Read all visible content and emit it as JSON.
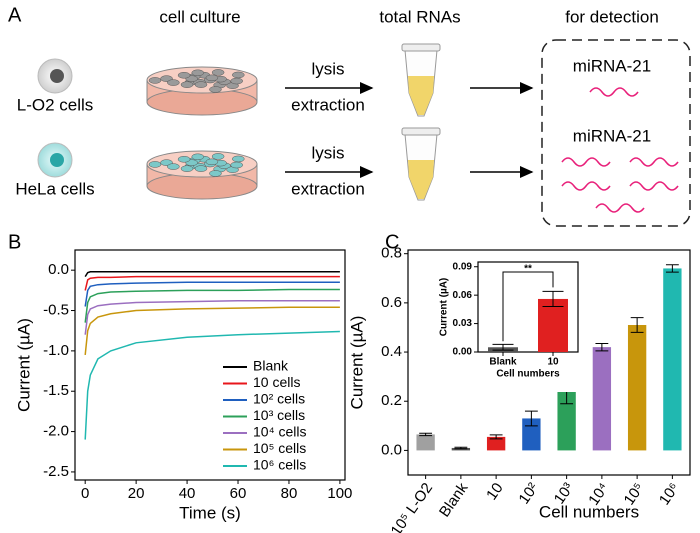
{
  "panel_labels": [
    "A",
    "B",
    "C"
  ],
  "diagram": {
    "steps": [
      "cell culture",
      "total RNAs",
      "for detection"
    ],
    "rows": [
      {
        "cells": "L-O2 cells",
        "arrow_top": "lysis",
        "arrow_bottom": "extraction",
        "target": "miRNA-21"
      },
      {
        "cells": "HeLa cells",
        "arrow_top": "lysis",
        "arrow_bottom": "extraction",
        "target": "miRNA-21"
      }
    ]
  },
  "chart_data": [
    {
      "type": "line",
      "xlabel": "Time (s)",
      "ylabel": "Current (µA)",
      "x": [
        0,
        1,
        2,
        5,
        10,
        20,
        40,
        60,
        80,
        100
      ],
      "series": [
        {
          "name": "Blank",
          "color": "#000000",
          "values": [
            -0.08,
            -0.03,
            -0.02,
            -0.02,
            -0.02,
            -0.02,
            -0.02,
            -0.02,
            -0.02,
            -0.02
          ]
        },
        {
          "name": "10 cells",
          "color": "#e8161b",
          "values": [
            -0.25,
            -0.12,
            -0.1,
            -0.09,
            -0.09,
            -0.08,
            -0.08,
            -0.08,
            -0.08,
            -0.08
          ]
        },
        {
          "name": "10² cells",
          "color": "#1f5fbf",
          "values": [
            -0.45,
            -0.25,
            -0.2,
            -0.18,
            -0.17,
            -0.16,
            -0.15,
            -0.15,
            -0.15,
            -0.15
          ]
        },
        {
          "name": "10³ cells",
          "color": "#2ca05a",
          "values": [
            -0.65,
            -0.4,
            -0.33,
            -0.29,
            -0.27,
            -0.26,
            -0.25,
            -0.25,
            -0.24,
            -0.24
          ]
        },
        {
          "name": "10⁴ cells",
          "color": "#9b6fc0",
          "values": [
            -0.8,
            -0.55,
            -0.48,
            -0.44,
            -0.42,
            -0.4,
            -0.39,
            -0.38,
            -0.38,
            -0.38
          ]
        },
        {
          "name": "10⁵ cells",
          "color": "#c8960c",
          "values": [
            -1.05,
            -0.75,
            -0.66,
            -0.58,
            -0.54,
            -0.5,
            -0.48,
            -0.47,
            -0.46,
            -0.46
          ]
        },
        {
          "name": "10⁶ cells",
          "color": "#20b8b0",
          "values": [
            -2.1,
            -1.5,
            -1.3,
            -1.1,
            -1.0,
            -0.9,
            -0.83,
            -0.8,
            -0.78,
            -0.76
          ]
        }
      ],
      "xlim": [
        -4,
        102
      ],
      "ylim": [
        -2.6,
        0.25
      ],
      "xticks": [
        0,
        20,
        40,
        60,
        80,
        100
      ],
      "yticks": [
        -2.5,
        {
          "value": -2,
          "label": "-2.0"
        },
        -1.5,
        {
          "value": -1,
          "label": "-1.0"
        },
        -0.5,
        {
          "value": 0,
          "label": "0.0"
        }
      ],
      "legend": "lower right"
    },
    {
      "type": "bar",
      "xlabel": "Cell numbers",
      "ylabel": "Current (µA)",
      "categories": [
        "10⁵ L-O2",
        "Blank",
        "10",
        "10²",
        "10³",
        "10⁴",
        "10⁵",
        "10⁶"
      ],
      "values": [
        0.065,
        0.01,
        0.055,
        0.13,
        0.24,
        0.42,
        0.51,
        0.74
      ],
      "errors": [
        0.005,
        0.003,
        0.008,
        0.03,
        0.05,
        0.015,
        0.03,
        0.015
      ],
      "colors": [
        "#a0a0a0",
        "#555555",
        "#e02020",
        "#1f5fbf",
        "#2ca05a",
        "#9b6fc0",
        "#c8960c",
        "#20b8b0"
      ],
      "ylim": [
        -0.1,
        0.815
      ],
      "yticks": [
        {
          "value": 0,
          "label": "0.0"
        },
        0.2,
        0.4,
        0.6,
        0.8
      ]
    },
    {
      "type": "bar",
      "xlabel": "Cell numbers",
      "ylabel": "Current (µA)",
      "categories": [
        "Blank",
        "10"
      ],
      "values": [
        0.005,
        0.056
      ],
      "errors": [
        0.003,
        0.008
      ],
      "colors": [
        "#555555",
        "#e02020"
      ],
      "ylim": [
        0,
        0.095
      ],
      "yticks": [
        {
          "value": 0,
          "label": "0.00"
        },
        0.03,
        0.06,
        0.09
      ],
      "annotation": "**"
    }
  ]
}
